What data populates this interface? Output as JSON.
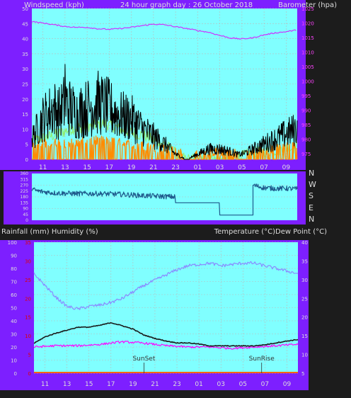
{
  "colors": {
    "background": "#1c1c1c",
    "frame": "#7d1fff",
    "plot": "#80ffff",
    "grid": "#bbbbbb",
    "wind_gust": "#000000",
    "wind_avg": "#ff8c00",
    "wind_light": "#90ee70",
    "barometer": "#cc33ff",
    "direction": "#1f5a8c",
    "temperature": "#1a1a1a",
    "dew_point": "#8a8aff",
    "rain": "#ff00ff",
    "humidity_axis": "#dddddd",
    "baro_axis": "#ff44ff",
    "rain_axis": "#dd0000",
    "text": "#dddddd",
    "sun_label": "#333333"
  },
  "top_chart": {
    "left_title": "Windspeed (kph)",
    "center_title": "24 hour graph day : 26 October 2018",
    "right_title": "Barometer (hpa)"
  },
  "direction_chart": {
    "compass_labels": [
      "N",
      "W",
      "S",
      "E",
      "N"
    ]
  },
  "bottom_chart": {
    "left_title": "Rainfall (mm)  Humidity (%)",
    "right_title": "Temperature (°C)Dew Point (°C)",
    "sunset_label": "SunSet",
    "sunrise_label": "SunRise"
  },
  "chart_data": [
    {
      "type": "line",
      "name": "windspeed_barometer",
      "x_hours": [
        10,
        34
      ],
      "x_tick_labels": [
        "11",
        "13",
        "15",
        "17",
        "19",
        "21",
        "23",
        "01",
        "03",
        "05",
        "07",
        "09"
      ],
      "left_axis": {
        "ylim": [
          0,
          50
        ],
        "ticks": [
          "0",
          "5",
          "10",
          "15",
          "20",
          "25",
          "30",
          "35",
          "40",
          "45",
          "50"
        ]
      },
      "right_axis": {
        "ylim": [
          973,
          1025
        ],
        "ticks": [
          "975",
          "980",
          "985",
          "990",
          "995",
          "1000",
          "1005",
          "1010",
          "1015",
          "1020",
          "1025"
        ]
      },
      "wind_gust_profile": {
        "x": [
          10.0,
          11.0,
          11.5,
          12.0,
          12.5,
          13.0,
          13.5,
          14.0,
          15.0,
          16.0,
          17.0,
          18.0,
          19.0,
          20.0,
          21.0,
          22.0,
          22.5,
          23.0,
          23.5,
          24.0,
          25.0,
          26.0,
          27.0,
          28.0,
          28.5,
          29.0,
          30.0,
          31.0,
          32.0,
          33.0,
          34.0
        ],
        "y": [
          8,
          16,
          18,
          20,
          18,
          22,
          20,
          18,
          20,
          22,
          20,
          17,
          16,
          12,
          9,
          6,
          4,
          2,
          1,
          0,
          2,
          4,
          4,
          3,
          2,
          2,
          4,
          6,
          8,
          10,
          12
        ],
        "peak": [
          13.0,
          31.5
        ]
      },
      "wind_avg_profile": {
        "x": [
          10.0,
          12.0,
          14.0,
          16.0,
          18.0,
          20.0,
          22.0,
          23.0,
          24.0,
          26.0,
          28.0,
          29.0,
          30.0,
          32.0,
          34.0
        ],
        "y": [
          3,
          4,
          4,
          5,
          4,
          3,
          2,
          1,
          0,
          1,
          1,
          0,
          1,
          2,
          3
        ]
      },
      "wind_light_profile": {
        "x": [
          10.0,
          12.0,
          13.5,
          15.0,
          16.5,
          18.0,
          20.0,
          22.0,
          23.0,
          24.0,
          28.0,
          30.0,
          32.0,
          34.0
        ],
        "y": [
          6,
          8,
          10,
          11,
          12,
          10,
          8,
          5,
          2,
          0,
          0,
          2,
          3,
          4
        ]
      },
      "barometer": {
        "x": [
          10.0,
          11.0,
          12.0,
          13.0,
          14.0,
          15.0,
          16.0,
          17.0,
          18.0,
          19.0,
          20.0,
          21.0,
          22.0,
          23.0,
          24.0,
          25.0,
          26.0,
          27.0,
          28.0,
          29.0,
          30.0,
          31.0,
          32.0,
          33.0,
          34.0
        ],
        "y": [
          1020.5,
          1020.0,
          1019.4,
          1018.8,
          1018.5,
          1018.5,
          1018.0,
          1017.8,
          1018.1,
          1018.5,
          1019.1,
          1019.6,
          1019.4,
          1018.7,
          1018.1,
          1017.4,
          1016.8,
          1015.7,
          1014.8,
          1014.5,
          1014.9,
          1015.9,
          1016.6,
          1017.0,
          1017.6
        ]
      }
    },
    {
      "type": "line",
      "name": "wind_direction",
      "x_hours": [
        10,
        34
      ],
      "ylim": [
        0,
        360
      ],
      "ticks": [
        "0",
        "45",
        "90",
        "135",
        "180",
        "225",
        "270",
        "315",
        "360"
      ],
      "direction_deg": {
        "x": [
          10.0,
          10.5,
          11.0,
          12.0,
          14.0,
          16.0,
          18.0,
          20.0,
          21.5,
          23.0,
          23.0,
          26.0,
          27.0,
          27.0,
          28.5,
          28.5,
          30.0,
          30.0,
          30.0,
          31.0,
          32.0,
          33.0,
          34.0
        ],
        "y": [
          240,
          225,
          220,
          210,
          205,
          205,
          200,
          190,
          185,
          180,
          135,
          135,
          135,
          40,
          40,
          40,
          40,
          40,
          270,
          250,
          245,
          245,
          240
        ]
      }
    },
    {
      "type": "line",
      "name": "temperature_humidity",
      "x_hours": [
        10,
        34
      ],
      "left_axis": {
        "ylim": [
          0,
          100
        ],
        "ticks": [
          "0",
          "10",
          "20",
          "30",
          "40",
          "50",
          "60",
          "70",
          "80",
          "90",
          "100"
        ]
      },
      "rain_axis": {
        "ylim": [
          0,
          35
        ],
        "ticks": [
          "0",
          "5",
          "10",
          "15",
          "20",
          "25",
          "30",
          "35"
        ]
      },
      "right_axis": {
        "ylim": [
          5,
          40
        ],
        "ticks": [
          "5",
          "10",
          "15",
          "20",
          "25",
          "30",
          "35",
          "40"
        ]
      },
      "temperature": {
        "x": [
          10.0,
          11.0,
          12.0,
          13.0,
          14.0,
          15.0,
          16.0,
          17.0,
          18.0,
          19.0,
          20.0,
          21.0,
          22.0,
          23.0,
          24.0,
          25.0,
          26.0,
          27.0,
          28.0,
          29.0,
          30.0,
          31.0,
          32.0,
          33.0,
          34.0
        ],
        "y": [
          13.0,
          14.7,
          15.7,
          16.5,
          17.3,
          17.3,
          17.8,
          18.5,
          17.7,
          16.8,
          15.2,
          14.3,
          13.6,
          13.1,
          13.1,
          12.8,
          12.3,
          12.3,
          12.3,
          12.3,
          12.3,
          12.6,
          13.1,
          13.6,
          14.0
        ]
      },
      "dew_point_humidity": {
        "x": [
          10.0,
          11.0,
          12.0,
          13.0,
          14.0,
          15.0,
          16.0,
          17.0,
          18.0,
          19.0,
          20.0,
          21.0,
          22.0,
          23.0,
          24.0,
          25.0,
          26.0,
          27.0,
          28.0,
          29.0,
          30.0,
          31.0,
          32.0,
          33.0,
          34.0
        ],
        "y": [
          76,
          67,
          58,
          51,
          49,
          51,
          52,
          54,
          57,
          62,
          67,
          71,
          75,
          79,
          82,
          83,
          84,
          82,
          83,
          84,
          84,
          82,
          80,
          78,
          76
        ]
      },
      "rain_humidity": {
        "x": [
          10.0,
          12.0,
          14.0,
          16.0,
          18.0,
          20.0,
          22.0,
          24.0,
          26.0,
          28.0,
          30.0,
          32.0,
          34.0
        ],
        "y": [
          20,
          21,
          21,
          22,
          24,
          23,
          21,
          20,
          20,
          19,
          20,
          21,
          22
        ]
      },
      "sunset_hour": 20.0,
      "sunrise_hour": 30.7
    }
  ]
}
